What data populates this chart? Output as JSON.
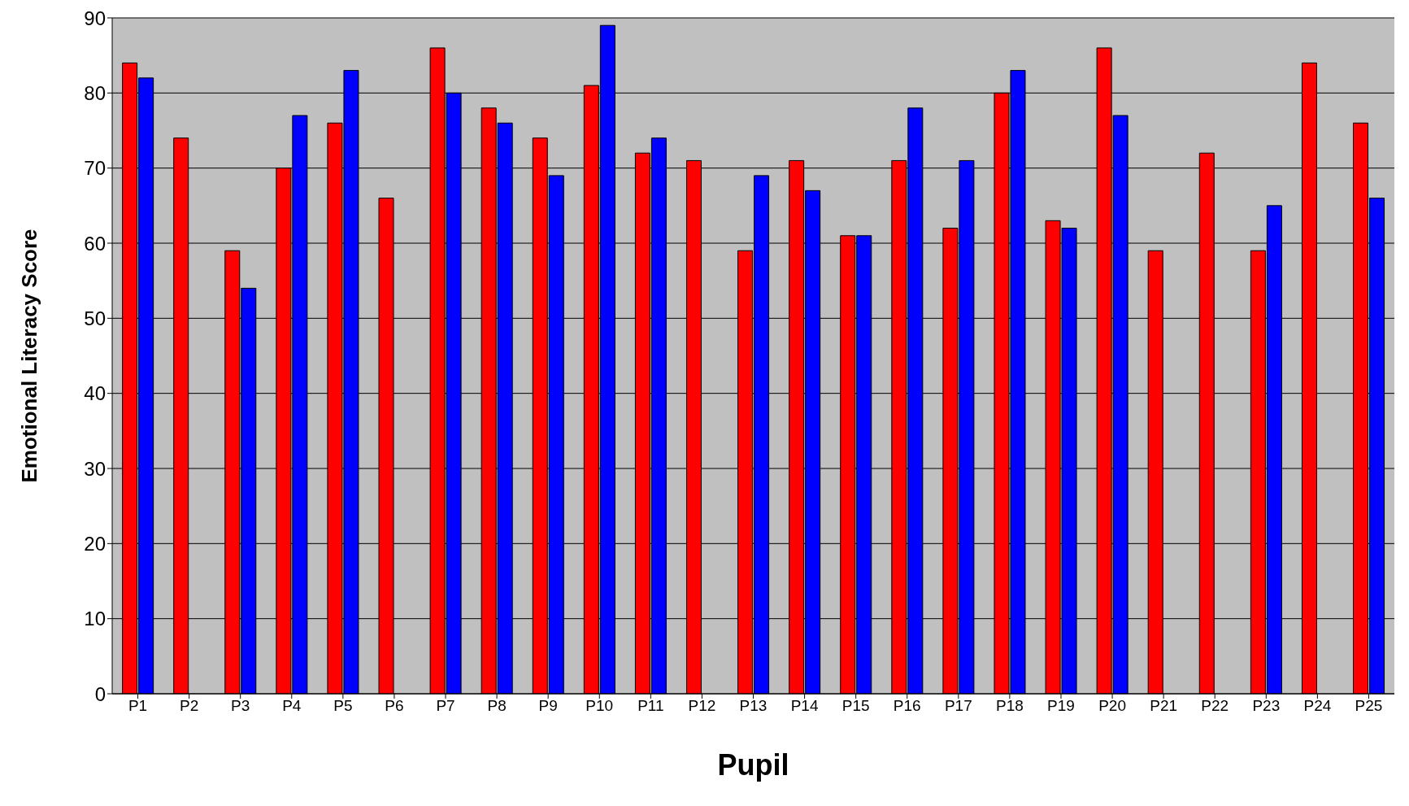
{
  "chart_data": {
    "type": "bar",
    "xlabel": "Pupil",
    "ylabel": "Emotional Literacy Score",
    "categories": [
      "P1",
      "P2",
      "P3",
      "P4",
      "P5",
      "P6",
      "P7",
      "P8",
      "P9",
      "P10",
      "P11",
      "P12",
      "P13",
      "P14",
      "P15",
      "P16",
      "P17",
      "P18",
      "P19",
      "P20",
      "P21",
      "P22",
      "P23",
      "P24",
      "P25"
    ],
    "series": [
      {
        "color": "#ff0000",
        "values": [
          84,
          74,
          59,
          70,
          76,
          66,
          86,
          78,
          74,
          81,
          72,
          71,
          59,
          71,
          61,
          71,
          62,
          80,
          63,
          86,
          59,
          72,
          59,
          84,
          76
        ]
      },
      {
        "color": "#0000ff",
        "values": [
          82,
          0,
          54,
          77,
          83,
          0,
          80,
          76,
          69,
          89,
          74,
          0,
          69,
          67,
          61,
          78,
          71,
          83,
          62,
          77,
          0,
          0,
          65,
          0,
          66
        ]
      }
    ],
    "ylim": [
      0,
      90
    ],
    "yticks": [
      0,
      10,
      20,
      30,
      40,
      50,
      60,
      70,
      80,
      90
    ],
    "grid": "y",
    "legend": false
  }
}
